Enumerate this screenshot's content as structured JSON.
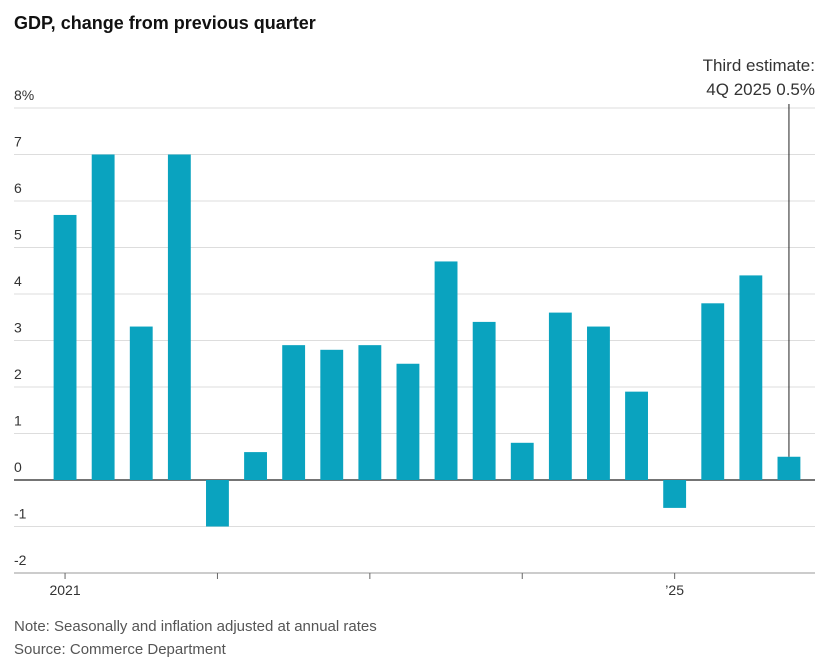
{
  "chart_data": {
    "type": "bar",
    "title": "GDP, change from previous quarter",
    "categories": [
      "2021",
      null,
      null,
      null,
      null,
      null,
      null,
      null,
      null,
      null,
      null,
      null,
      null,
      null,
      null,
      null,
      "’25",
      null,
      null,
      null
    ],
    "values": [
      5.7,
      7.0,
      3.3,
      7.0,
      -1.0,
      0.6,
      2.9,
      2.8,
      2.9,
      2.5,
      4.7,
      3.4,
      0.8,
      3.6,
      3.3,
      1.9,
      -0.6,
      3.8,
      4.4,
      0.5
    ],
    "color": "#0aa3bf",
    "ylim": [
      -2,
      8
    ],
    "yticks": [
      -2,
      -1,
      0,
      1,
      2,
      3,
      4,
      5,
      6,
      7,
      {
        "value": 8,
        "label": "8%"
      }
    ],
    "grid": true,
    "annotation": [
      "Third estimate:",
      "4Q 2025 0.5%"
    ],
    "note": "Note: Seasonally and inflation adjusted at annual rates",
    "source": "Source: Commerce Department"
  }
}
